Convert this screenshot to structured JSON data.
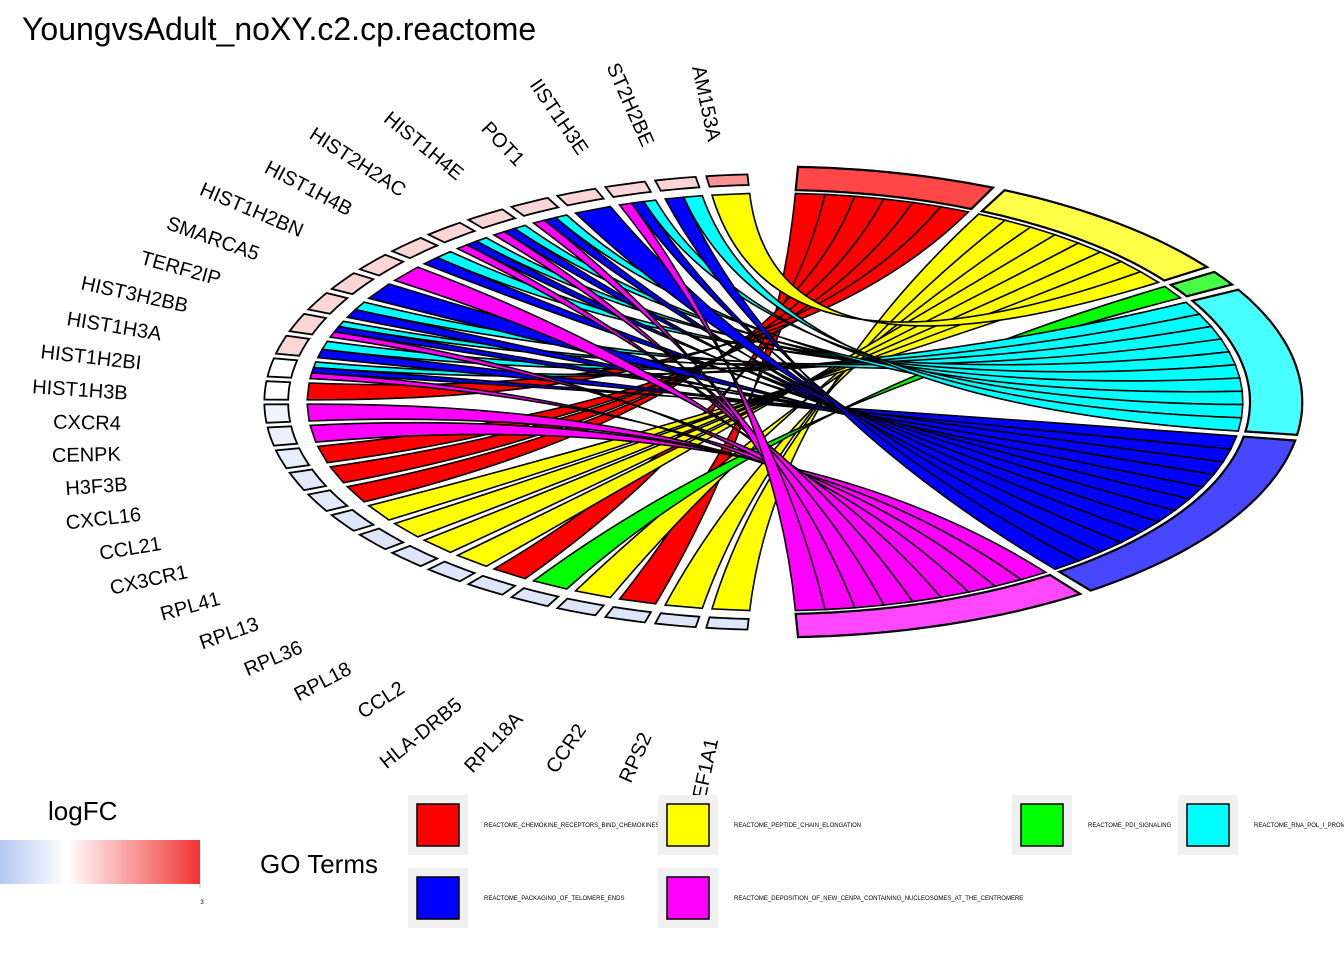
{
  "chart_data": {
    "type": "chord",
    "title": "YoungvsAdult_noXY.c2.cp.reactome",
    "genes": [
      "AM153A",
      "ST2H2BE",
      "IIST1H3E",
      "POT1",
      "HIST1H4E",
      "HIST2H2AC",
      "HIST1H4B",
      "HIST1H2BN",
      "SMARCA5",
      "TERF2IP",
      "HIST3H2BB",
      "HIST1H3A",
      "HIST1H2BI",
      "HIST1H3B",
      "CXCR4",
      "CENPK",
      "H3F3B",
      "CXCL16",
      "CCL21",
      "CX3CR1",
      "RPL41",
      "RPL13",
      "RPL36",
      "RPL18",
      "CCL2",
      "HLA-DRB5",
      "RPL18A",
      "CCR2",
      "RPS2",
      "EF1A1"
    ],
    "logfc": [
      1.6,
      0.6,
      0.6,
      0.6,
      0.6,
      0.6,
      0.6,
      0.6,
      0.6,
      0.6,
      0.6,
      0.6,
      0.6,
      0.0,
      0.0,
      -0.3,
      -0.4,
      -0.5,
      -0.6,
      -0.6,
      -0.7,
      -0.7,
      -0.7,
      -0.7,
      -0.7,
      -0.7,
      -0.7,
      -0.7,
      -0.7,
      -0.7
    ],
    "terms": [
      {
        "name": "REACTOME_CHEMOKINE_RECEPTORS_BIND_CHEMOKINES",
        "color": "#ff0000",
        "genes": [
          "CCR2",
          "CCL2",
          "CX3CR1",
          "CCL21",
          "CXCL16",
          "CXCR4"
        ]
      },
      {
        "name": "REACTOME_PEPTIDE_CHAIN_ELONGATION",
        "color": "#ffff00",
        "genes": [
          "EF1A1",
          "RPS2",
          "RPL18A",
          "RPL18",
          "RPL36",
          "RPL13",
          "RPL41",
          "AM153A"
        ]
      },
      {
        "name": "REACTOME_PDI_SIGNALING",
        "color": "#00ff00",
        "genes": [
          "HLA-DRB5"
        ]
      },
      {
        "name": "REACTOME_RNA_POL_I_PROMOT",
        "color": "#00ffff",
        "genes": [
          "HIST1H3B",
          "HIST1H2BI",
          "HIST1H3A",
          "HIST3H2BB",
          "HIST1H2BN",
          "HIST1H4B",
          "HIST2H2AC",
          "HIST1H4E",
          "IIST1H3E",
          "ST2H2BE"
        ]
      },
      {
        "name": "REACTOME_PACKAGING_OF_TELOMERE_ENDS",
        "color": "#0000ff",
        "genes": [
          "HIST1H3B",
          "HIST1H2BI",
          "HIST1H3A",
          "HIST3H2BB",
          "TERF2IP",
          "HIST1H2BN",
          "HIST1H4B",
          "HIST2H2AC",
          "HIST1H4E",
          "POT1",
          "IIST1H3E",
          "ST2H2BE"
        ]
      },
      {
        "name": "REACTOME_DEPOSITION_OF_NEW_CENPA_CONTAINING_NUCLEOSOMES_AT_THE_CENTROMERE",
        "color": "#ff00ff",
        "genes": [
          "H3F3B",
          "CENPK",
          "HIST1H3B",
          "HIST1H3A",
          "SMARCA5",
          "HIST1H4B",
          "HIST2H2AC",
          "HIST1H4E",
          "IIST1H3E"
        ]
      }
    ],
    "legend_title": "GO Terms",
    "colorbar": {
      "title": "logFC",
      "lim": [
        -1.5,
        3
      ],
      "ticks": [
        3
      ],
      "colors": [
        "#b4c8f2",
        "#ffffff",
        "#f03434"
      ]
    }
  }
}
